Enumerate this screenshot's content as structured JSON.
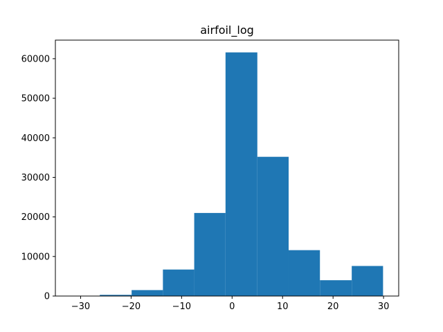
{
  "chart_data": {
    "type": "bar",
    "title": "airfoil_log",
    "xlabel": "",
    "ylabel": "",
    "xlim": [
      -35,
      33
    ],
    "ylim": [
      0,
      64700
    ],
    "xticks": [
      -30,
      -20,
      -10,
      0,
      10,
      20,
      30
    ],
    "xtick_labels": [
      "−30",
      "−20",
      "−10",
      "0",
      "10",
      "20",
      "30"
    ],
    "yticks": [
      0,
      10000,
      20000,
      30000,
      40000,
      50000,
      60000
    ],
    "ytick_labels": [
      "0",
      "10000",
      "20000",
      "30000",
      "40000",
      "50000",
      "60000"
    ],
    "bin_edges": [
      -32.4,
      -26.2,
      -19.9,
      -13.7,
      -7.5,
      -1.3,
      5.0,
      11.2,
      17.4,
      23.7,
      29.9
    ],
    "values": [
      20,
      300,
      1500,
      6700,
      21000,
      61600,
      35200,
      11600,
      4000,
      7600
    ],
    "bar_color": "#1f77b4",
    "grid": false,
    "legend": "none"
  }
}
